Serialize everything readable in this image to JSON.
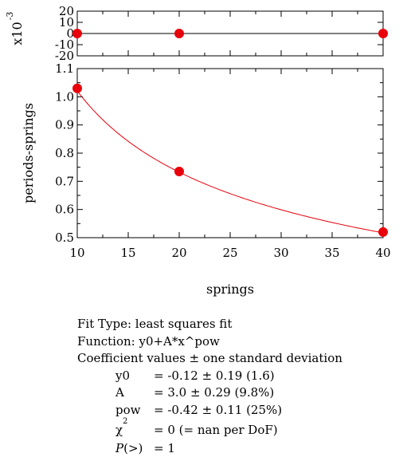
{
  "chart_data": [
    {
      "type": "scatter",
      "panel": "residuals",
      "ylabel": "x10",
      "ylabel_exponent": "-3",
      "xlim": [
        10,
        40
      ],
      "ylim": [
        -20,
        20
      ],
      "yticks": [
        20,
        10,
        0,
        -10,
        -20
      ],
      "series": [
        {
          "x": [
            10,
            20,
            40
          ],
          "y": [
            0,
            0,
            0
          ]
        }
      ],
      "zero_line": true
    },
    {
      "type": "scatter",
      "panel": "main",
      "xlabel": "springs",
      "ylabel": "periods-springs",
      "xlim": [
        10,
        40
      ],
      "ylim": [
        0.5,
        1.1
      ],
      "xticks": [
        10,
        15,
        20,
        25,
        30,
        35,
        40
      ],
      "yticks": [
        0.5,
        0.6,
        0.7,
        0.8,
        0.9,
        1.0,
        1.1
      ],
      "ytick_labels": [
        "0.5",
        "0.6",
        "0.7",
        "0.8",
        "0.9",
        "1.0",
        "1.1"
      ],
      "series": [
        {
          "x": [
            10,
            20,
            40
          ],
          "y": [
            1.03,
            0.735,
            0.52
          ]
        }
      ],
      "fit_curve": {
        "y0": -0.12,
        "A": 3.0,
        "pow": -0.42
      }
    }
  ],
  "colors": {
    "marker": "#e8000b",
    "fit": "#e8000b",
    "axis": "#000000"
  },
  "fit_info": {
    "fit_type": "Fit Type: least squares fit",
    "function": "Function: y0+A*x^pow",
    "coef_header": "Coefficient values ± one standard deviation",
    "coefficients": [
      {
        "name": "y0",
        "value": "= -0.12 ± 0.19  (1.6)"
      },
      {
        "name": "A",
        "value": "= 3.0 ± 0.29  (9.8%)"
      },
      {
        "name": "pow",
        "value": "= -0.42 ± 0.11  (25%)"
      }
    ],
    "chi_name": "χ",
    "chi_sup": "2",
    "chi_value": "= 0 (= nan per DoF)",
    "p_name": "P",
    "p_suffix": "(>)",
    "p_value": "= 1"
  }
}
